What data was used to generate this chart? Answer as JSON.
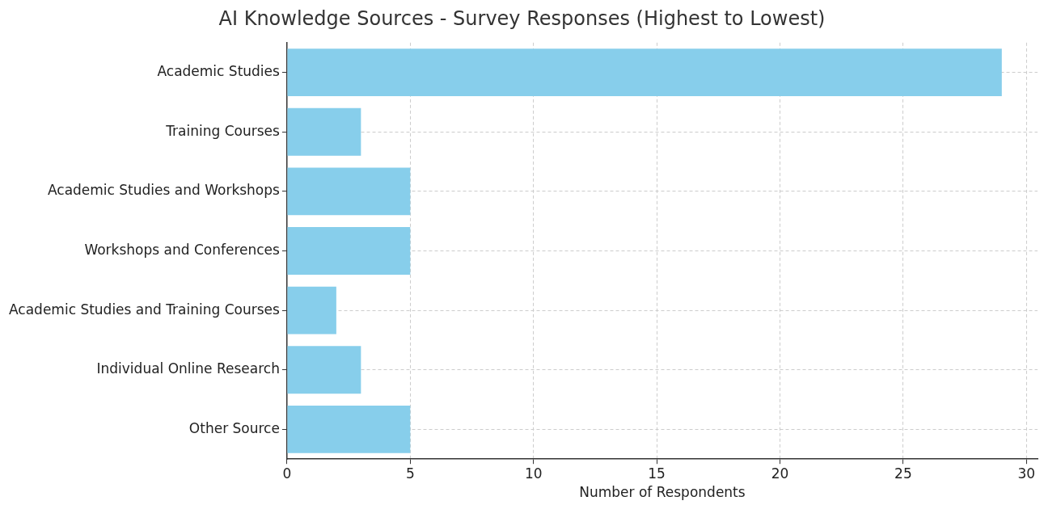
{
  "chart_data": {
    "type": "bar",
    "orientation": "horizontal",
    "title": "AI Knowledge Sources - Survey Responses (Highest to Lowest)",
    "xlabel": "Number of Respondents",
    "categories": [
      "Academic Studies",
      "Training Courses",
      "Academic Studies and Workshops",
      "Workshops and Conferences",
      "Academic Studies and Training Courses",
      "Individual Online Research",
      "Other Source"
    ],
    "values": [
      29,
      3,
      5,
      5,
      2,
      3,
      5
    ],
    "color": "#87ceeb",
    "xlim": [
      0,
      30.45
    ],
    "xticks": [
      0,
      5,
      10,
      15,
      20,
      25,
      30
    ],
    "grid": true,
    "legend": false
  }
}
